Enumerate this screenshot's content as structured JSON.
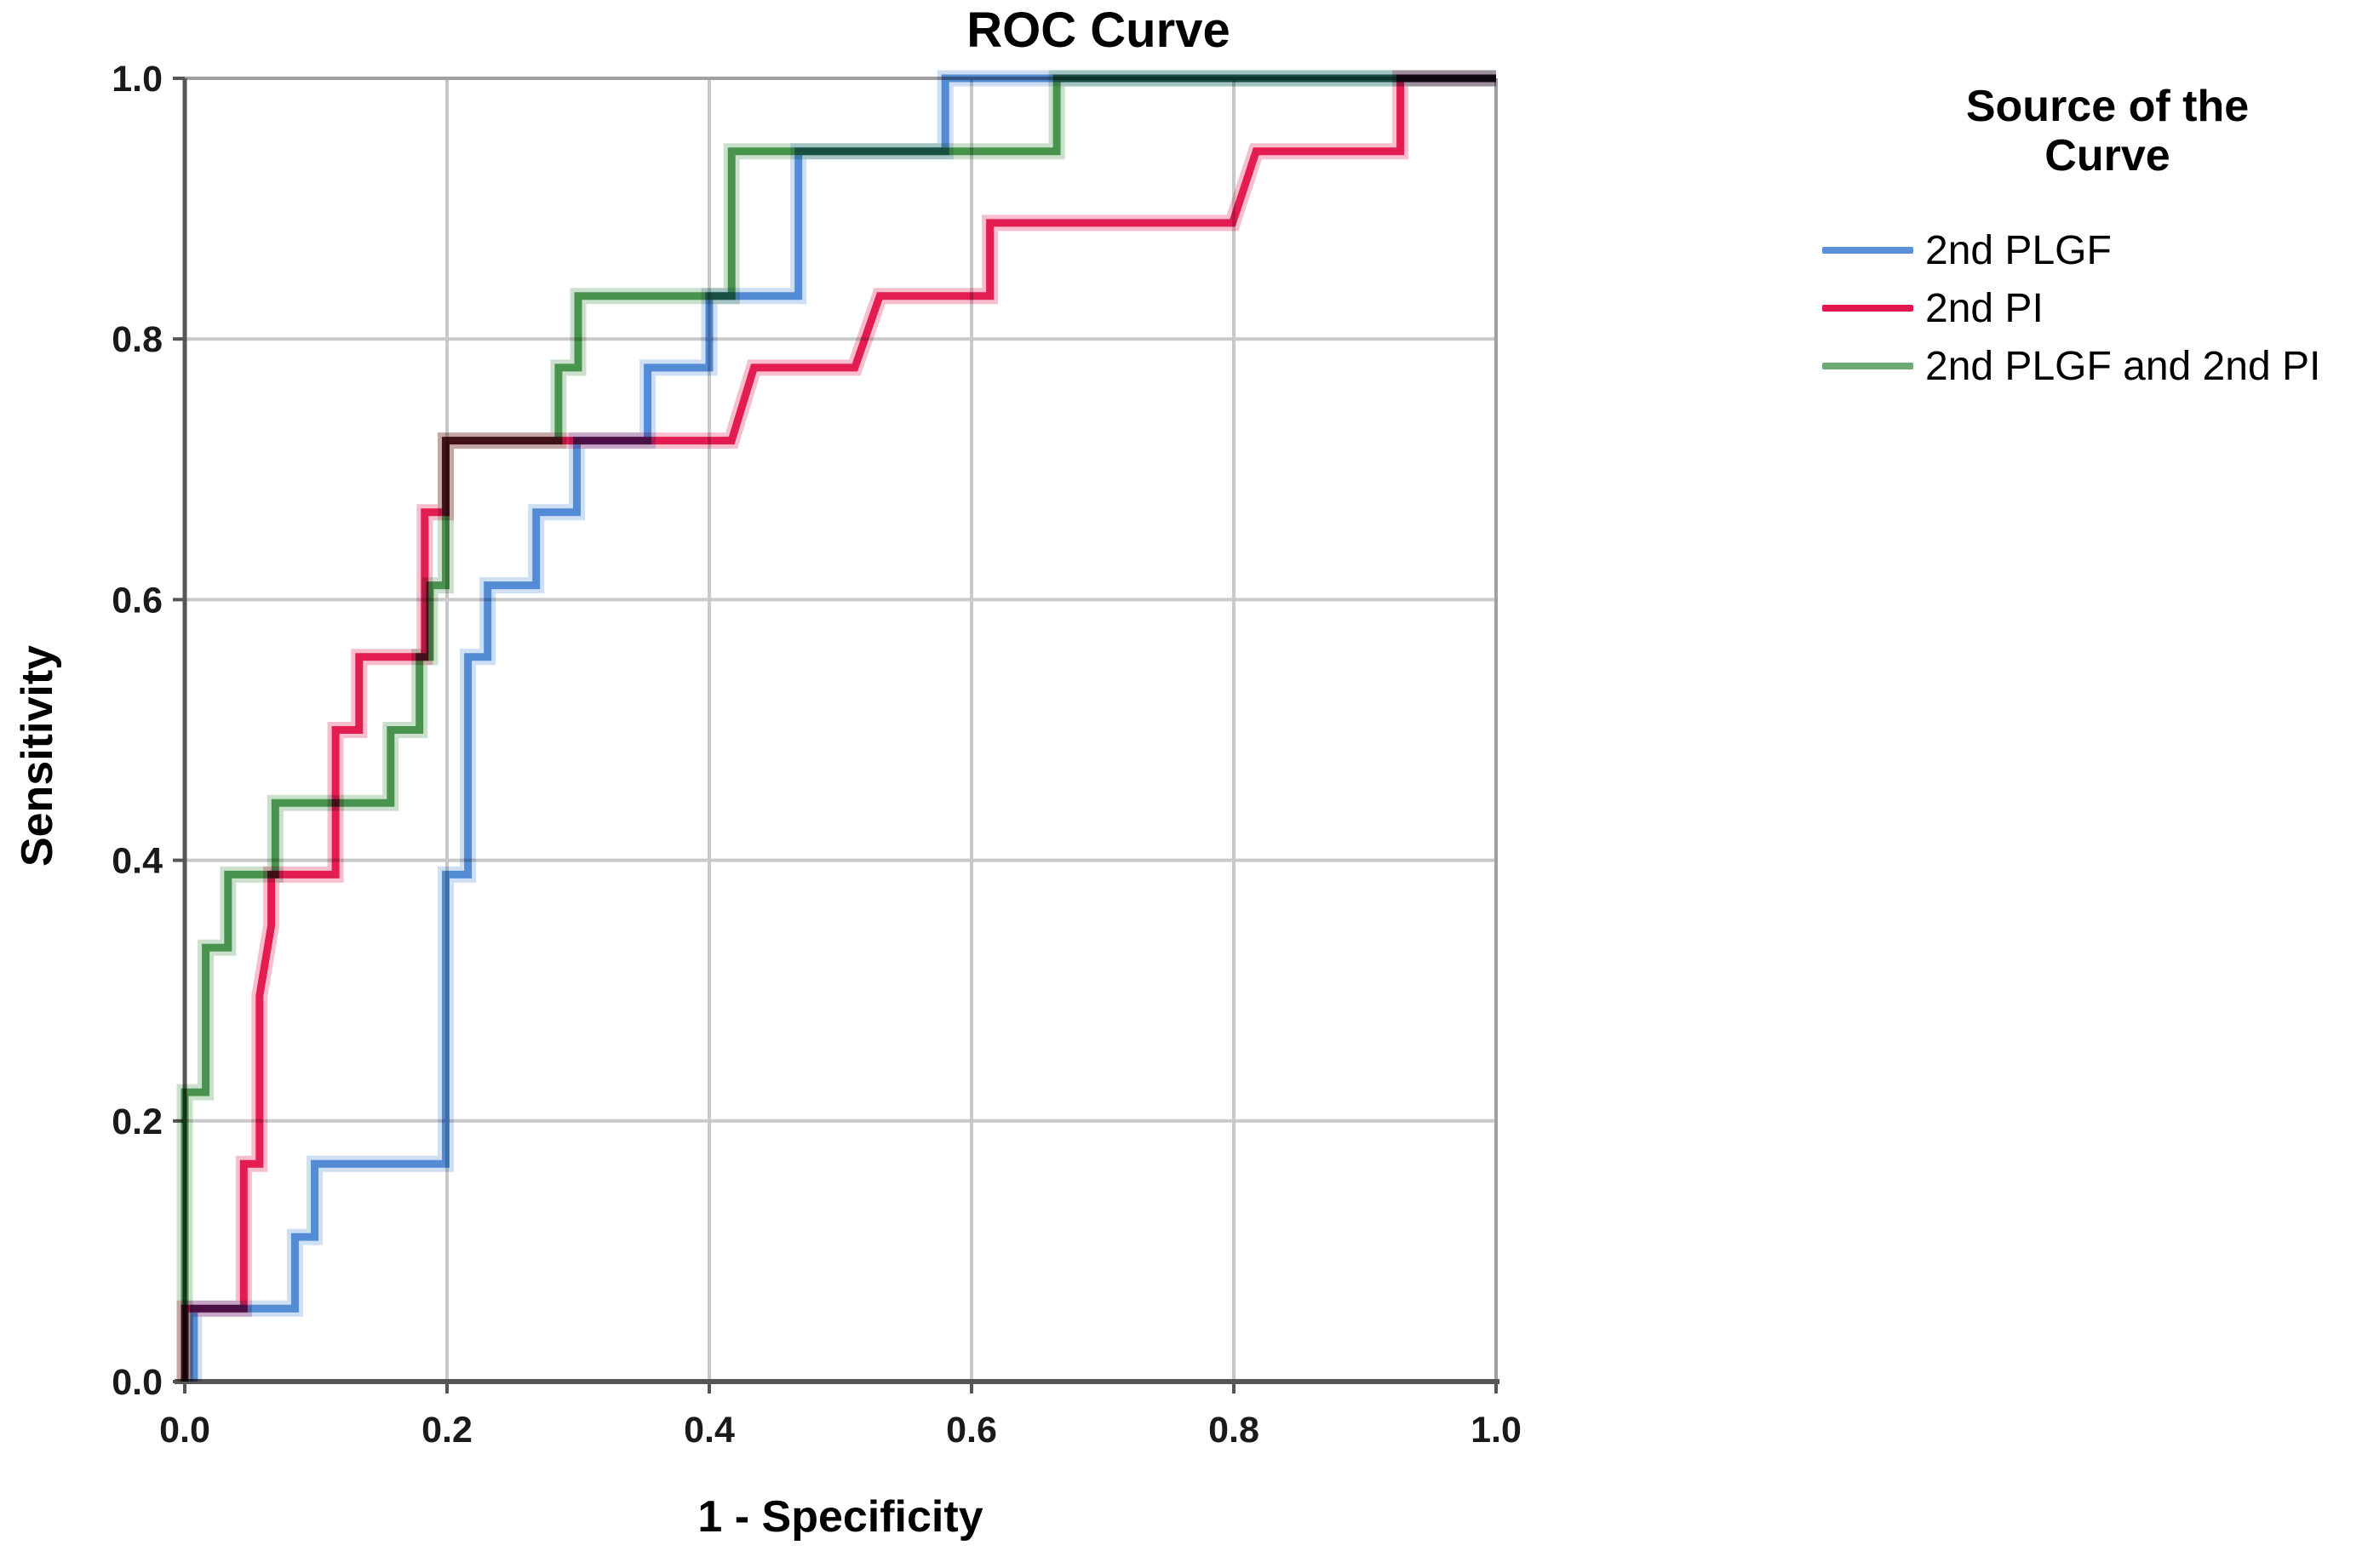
{
  "chart": {
    "title": "ROC Curve",
    "xlabel": "1 - Specificity",
    "ylabel": "Sensitivity"
  },
  "legend": {
    "title": "Source of the Curve",
    "items": [
      {
        "label": "2nd PLGF",
        "color": "#5b90d6"
      },
      {
        "label": "2nd PI",
        "color": "#e3164e"
      },
      {
        "label": "2nd PLGF and 2nd PI",
        "color": "#6cab74"
      }
    ]
  },
  "chart_data": {
    "type": "line",
    "subtype": "roc-step",
    "title": "ROC Curve",
    "xlabel": "1 - Specificity",
    "ylabel": "Sensitivity",
    "xlim": [
      0,
      1
    ],
    "ylim": [
      0,
      1
    ],
    "x_ticks": [
      "0.0",
      "0.2",
      "0.4",
      "0.6",
      "0.8",
      "1.0"
    ],
    "y_ticks": [
      "0.0",
      "0.2",
      "0.4",
      "0.6",
      "0.8",
      "1.0"
    ],
    "grid": true,
    "legend_position": "right",
    "colors": {
      "grid": "#c9c9c9",
      "frame_light": "#a0a0a0",
      "axis_dark": "#565656",
      "tick": "#565656"
    },
    "series": [
      {
        "name": "2nd PLGF",
        "color": "#4f88d4",
        "points": [
          [
            0.007,
            0
          ],
          [
            0.007,
            0.056
          ],
          [
            0.084,
            0.056
          ],
          [
            0.084,
            0.111
          ],
          [
            0.099,
            0.111
          ],
          [
            0.099,
            0.167
          ],
          [
            0.199,
            0.167
          ],
          [
            0.199,
            0.389
          ],
          [
            0.216,
            0.389
          ],
          [
            0.216,
            0.556
          ],
          [
            0.231,
            0.556
          ],
          [
            0.231,
            0.611
          ],
          [
            0.268,
            0.611
          ],
          [
            0.268,
            0.667
          ],
          [
            0.299,
            0.667
          ],
          [
            0.299,
            0.722
          ],
          [
            0.353,
            0.722
          ],
          [
            0.353,
            0.778
          ],
          [
            0.4,
            0.778
          ],
          [
            0.4,
            0.833
          ],
          [
            0.468,
            0.833
          ],
          [
            0.468,
            0.944
          ],
          [
            0.58,
            0.944
          ],
          [
            0.58,
            1
          ],
          [
            1,
            1
          ]
        ]
      },
      {
        "name": "2nd PI",
        "color": "#e3164e",
        "points": [
          [
            0,
            0
          ],
          [
            0,
            0.056
          ],
          [
            0.045,
            0.056
          ],
          [
            0.045,
            0.167
          ],
          [
            0.057,
            0.167
          ],
          [
            0.057,
            0.296
          ],
          [
            0.066,
            0.35
          ],
          [
            0.066,
            0.389
          ],
          [
            0.115,
            0.389
          ],
          [
            0.115,
            0.5
          ],
          [
            0.133,
            0.5
          ],
          [
            0.133,
            0.556
          ],
          [
            0.183,
            0.556
          ],
          [
            0.183,
            0.667
          ],
          [
            0.199,
            0.667
          ],
          [
            0.199,
            0.722
          ],
          [
            0.417,
            0.722
          ],
          [
            0.434,
            0.778
          ],
          [
            0.511,
            0.778
          ],
          [
            0.53,
            0.833
          ],
          [
            0.614,
            0.833
          ],
          [
            0.614,
            0.889
          ],
          [
            0.799,
            0.889
          ],
          [
            0.817,
            0.944
          ],
          [
            0.927,
            0.944
          ],
          [
            0.927,
            1
          ],
          [
            1,
            1
          ]
        ]
      },
      {
        "name": "2nd PLGF and 2nd PI",
        "color": "#449149",
        "points": [
          [
            0,
            0
          ],
          [
            0,
            0.222
          ],
          [
            0.016,
            0.222
          ],
          [
            0.016,
            0.333
          ],
          [
            0.033,
            0.333
          ],
          [
            0.033,
            0.389
          ],
          [
            0.069,
            0.389
          ],
          [
            0.069,
            0.444
          ],
          [
            0.157,
            0.444
          ],
          [
            0.157,
            0.5
          ],
          [
            0.179,
            0.5
          ],
          [
            0.179,
            0.556
          ],
          [
            0.187,
            0.556
          ],
          [
            0.187,
            0.611
          ],
          [
            0.199,
            0.611
          ],
          [
            0.199,
            0.722
          ],
          [
            0.285,
            0.722
          ],
          [
            0.285,
            0.778
          ],
          [
            0.3,
            0.778
          ],
          [
            0.3,
            0.833
          ],
          [
            0.417,
            0.833
          ],
          [
            0.417,
            0.944
          ],
          [
            0.665,
            0.944
          ],
          [
            0.665,
            1
          ],
          [
            1,
            1
          ]
        ]
      }
    ]
  }
}
